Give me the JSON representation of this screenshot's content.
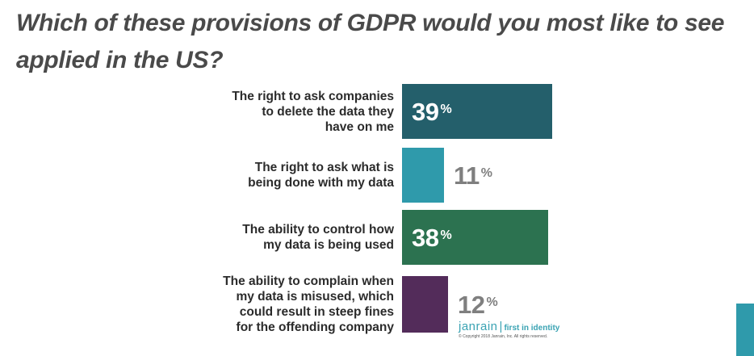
{
  "chart_data": {
    "type": "bar",
    "orientation": "horizontal",
    "title": "Which of these provisions of GDPR would you most like to see applied in the US?",
    "categories": [
      [
        "The right to ask companies",
        "to delete the data they",
        "have on me"
      ],
      [
        "The right to ask what is",
        "being done with my data"
      ],
      [
        "The ability to control how",
        "my data is being used"
      ],
      [
        "The ability to complain when",
        "my data is misused, which",
        "could result in steep fines",
        "for the offending company"
      ]
    ],
    "values": [
      39,
      11,
      38,
      12
    ],
    "unit": "%",
    "xlim": [
      0,
      39
    ],
    "colors": [
      "#245f6b",
      "#2f9aab",
      "#2c7250",
      "#532c5a"
    ],
    "value_label_position": [
      "inside",
      "outside",
      "inside",
      "outside"
    ],
    "grid": false,
    "legend": "none"
  },
  "branding": {
    "logo": "janrain",
    "tagline": "first in identity",
    "copyright": "© Copyright 2018 Janrain, Inc. All rights reserved."
  }
}
